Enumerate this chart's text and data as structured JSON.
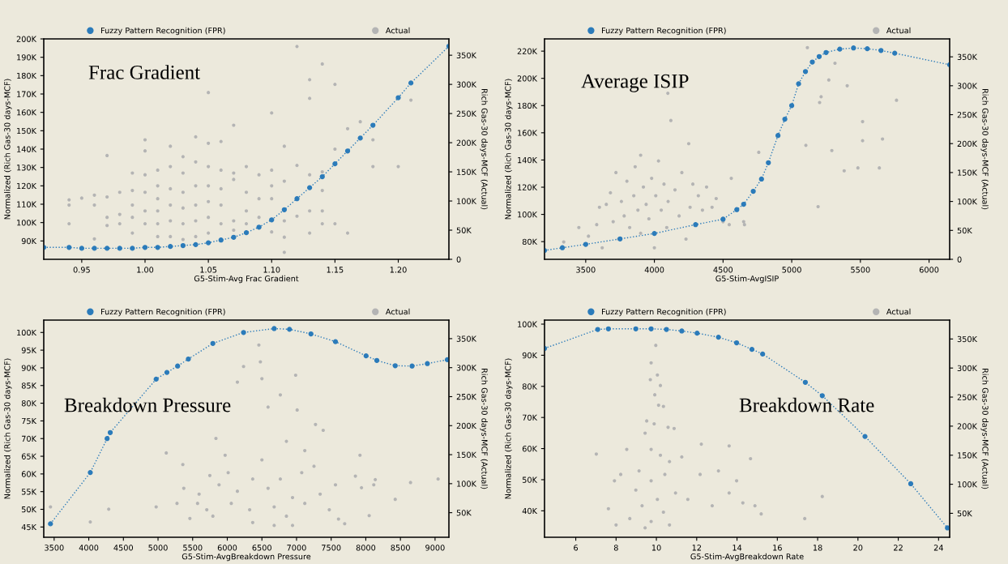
{
  "chart_data": [
    {
      "type": "scatter",
      "title": "Frac Gradient",
      "xlabel": "G5-Stim-Avg Frac Gradient",
      "ylabel": "Normalized (Rich Gas-30 days-MCF)",
      "y2label": "Rich Gas-30 days-MCF (Actual)",
      "legend": "top",
      "xlim": [
        0.92,
        1.24
      ],
      "xticks": [
        {
          "value": 0.95,
          "label": "0.95"
        },
        {
          "value": 1.0,
          "label": "1.00"
        },
        {
          "value": 1.05,
          "label": "1.05"
        },
        {
          "value": 1.1,
          "label": "1.10"
        },
        {
          "value": 1.15,
          "label": "1.15"
        },
        {
          "value": 1.2,
          "label": "1.20"
        }
      ],
      "ylim": [
        80000,
        200000
      ],
      "yticks": [
        {
          "value": 90000,
          "label": "90K"
        },
        {
          "value": 100000,
          "label": "100K"
        },
        {
          "value": 110000,
          "label": "110K"
        },
        {
          "value": 120000,
          "label": "120K"
        },
        {
          "value": 130000,
          "label": "130K"
        },
        {
          "value": 140000,
          "label": "140K"
        },
        {
          "value": 150000,
          "label": "150K"
        },
        {
          "value": 160000,
          "label": "160K"
        },
        {
          "value": 170000,
          "label": "170K"
        },
        {
          "value": 180000,
          "label": "180K"
        },
        {
          "value": 190000,
          "label": "190K"
        },
        {
          "value": 200000,
          "label": "200K"
        }
      ],
      "y2lim": [
        0,
        378000
      ],
      "y2ticks": [
        0,
        {
          "value": 50000,
          "label": "50K"
        },
        {
          "value": 100000,
          "label": "100K"
        },
        {
          "value": 150000,
          "label": "150K"
        },
        {
          "value": 200000,
          "label": "200K"
        },
        {
          "value": 250000,
          "label": "250K"
        },
        {
          "value": 300000,
          "label": "300K"
        },
        {
          "value": 350000,
          "label": "350K"
        }
      ],
      "series": [
        {
          "name": "Fuzzy Pattern Recognition (FPR)",
          "type": "line",
          "marker": "circle",
          "line_style": "dotted",
          "color": "#2b7bba",
          "x": [
            0.92,
            0.94,
            0.95,
            0.96,
            0.97,
            0.98,
            0.99,
            1.0,
            1.01,
            1.02,
            1.03,
            1.04,
            1.05,
            1.06,
            1.07,
            1.08,
            1.09,
            1.1,
            1.11,
            1.12,
            1.13,
            1.14,
            1.15,
            1.16,
            1.17,
            1.18,
            1.2,
            1.21,
            1.24
          ],
          "values": [
            86500,
            86500,
            86000,
            86000,
            86000,
            86000,
            86000,
            86500,
            86500,
            87000,
            87500,
            88000,
            89000,
            90500,
            92000,
            94500,
            97500,
            101500,
            107000,
            113000,
            119000,
            125000,
            132000,
            139000,
            146000,
            153000,
            168000,
            176000,
            196000
          ]
        },
        {
          "name": "Actual",
          "axis": "y2",
          "marker": "circle",
          "color": "#b4b4b4",
          "x": [
            0.94,
            0.94,
            0.94,
            0.95,
            0.96,
            0.96,
            0.96,
            0.97,
            0.97,
            0.97,
            0.97,
            0.98,
            0.98,
            0.98,
            0.99,
            0.99,
            0.99,
            0.99,
            0.99,
            1.0,
            1.0,
            1.0,
            1.0,
            1.0,
            1.0,
            1.01,
            1.01,
            1.01,
            1.01,
            1.01,
            1.01,
            1.02,
            1.02,
            1.02,
            1.02,
            1.02,
            1.02,
            1.03,
            1.03,
            1.03,
            1.03,
            1.03,
            1.03,
            1.04,
            1.04,
            1.04,
            1.04,
            1.04,
            1.04,
            1.05,
            1.05,
            1.05,
            1.05,
            1.05,
            1.05,
            1.05,
            1.06,
            1.06,
            1.06,
            1.06,
            1.06,
            1.07,
            1.07,
            1.07,
            1.07,
            1.07,
            1.08,
            1.08,
            1.08,
            1.08,
            1.09,
            1.09,
            1.09,
            1.1,
            1.1,
            1.1,
            1.1,
            1.1,
            1.11,
            1.11,
            1.11,
            1.11,
            1.11,
            1.12,
            1.12,
            1.12,
            1.13,
            1.13,
            1.13,
            1.13,
            1.13,
            1.14,
            1.14,
            1.14,
            1.14,
            1.14,
            1.15,
            1.15,
            1.15,
            1.16,
            1.16,
            1.17,
            1.18,
            1.18,
            1.2,
            1.21
          ],
          "values": [
            102000,
            93000,
            61000,
            105000,
            110000,
            93000,
            35000,
            178000,
            107000,
            72000,
            58000,
            115000,
            77000,
            61000,
            148000,
            118000,
            93000,
            72000,
            45000,
            205000,
            186000,
            145000,
            115000,
            83000,
            61000,
            153000,
            126000,
            104000,
            83000,
            61000,
            39000,
            194000,
            159000,
            121000,
            93000,
            66000,
            39000,
            176000,
            148000,
            115000,
            88000,
            61000,
            34000,
            210000,
            167000,
            126000,
            93000,
            66000,
            39000,
            286000,
            199000,
            159000,
            126000,
            99000,
            72000,
            45000,
            202000,
            153000,
            121000,
            93000,
            61000,
            230000,
            148000,
            137000,
            66000,
            50000,
            159000,
            115000,
            83000,
            61000,
            145000,
            104000,
            72000,
            251000,
            153000,
            126000,
            104000,
            47000,
            194000,
            134000,
            66000,
            38000,
            12000,
            365000,
            161000,
            74000,
            308000,
            276000,
            145000,
            83000,
            45000,
            335000,
            150000,
            118000,
            83000,
            61000,
            300000,
            189000,
            61000,
            224000,
            45000,
            236000,
            205000,
            159000,
            159000,
            273000
          ]
        }
      ]
    },
    {
      "type": "scatter",
      "title": "Average ISIP",
      "xlabel": "G5-Stim-AvgISIP",
      "ylabel": "Normalized (Rich Gas-30 days-MCF)",
      "y2label": "Rich Gas-30 days-MCF (Actual)",
      "legend": "top",
      "xlim": [
        3200,
        6150
      ],
      "xticks": [
        3500,
        4000,
        4500,
        5000,
        5500,
        6000
      ],
      "ylim": [
        67000,
        229000
      ],
      "yticks": [
        {
          "value": 80000,
          "label": "80K"
        },
        {
          "value": 100000,
          "label": "100K"
        },
        {
          "value": 120000,
          "label": "120K"
        },
        {
          "value": 140000,
          "label": "140K"
        },
        {
          "value": 160000,
          "label": "160K"
        },
        {
          "value": 180000,
          "label": "180K"
        },
        {
          "value": 200000,
          "label": "200K"
        },
        {
          "value": 220000,
          "label": "220K"
        }
      ],
      "y2lim": [
        0,
        381000
      ],
      "y2ticks": [
        0,
        {
          "value": 50000,
          "label": "50K"
        },
        {
          "value": 100000,
          "label": "100K"
        },
        {
          "value": 150000,
          "label": "150K"
        },
        {
          "value": 200000,
          "label": "200K"
        },
        {
          "value": 250000,
          "label": "250K"
        },
        {
          "value": 300000,
          "label": "300K"
        },
        {
          "value": 350000,
          "label": "350K"
        }
      ],
      "series": [
        {
          "name": "Fuzzy Pattern Recognition (FPR)",
          "type": "line",
          "marker": "circle",
          "line_style": "dotted",
          "color": "#2b7bba",
          "x": [
            3200,
            3330,
            3500,
            3750,
            4000,
            4300,
            4500,
            4600,
            4650,
            4720,
            4780,
            4830,
            4900,
            4950,
            5000,
            5050,
            5100,
            5150,
            5200,
            5250,
            5350,
            5450,
            5550,
            5650,
            5750,
            6150
          ],
          "values": [
            73500,
            75500,
            78000,
            82000,
            86000,
            92500,
            96500,
            103500,
            107500,
            117000,
            126000,
            138000,
            158000,
            170000,
            180000,
            196000,
            205000,
            212000,
            216000,
            219000,
            221500,
            222300,
            221800,
            220500,
            218500,
            210000
          ]
        },
        {
          "name": "Actual",
          "axis": "y2",
          "marker": "circle",
          "color": "#b4b4b4",
          "x": [
            3340,
            3450,
            3520,
            3580,
            3600,
            3620,
            3650,
            3680,
            3700,
            3720,
            3740,
            3760,
            3780,
            3800,
            3820,
            3850,
            3860,
            3880,
            3900,
            3900,
            3920,
            3940,
            3960,
            3980,
            4000,
            4010,
            4030,
            4050,
            4070,
            4090,
            4100,
            4120,
            4150,
            4180,
            4200,
            4230,
            4250,
            4260,
            4280,
            4320,
            4350,
            4380,
            4420,
            4450,
            4500,
            4545,
            4560,
            4650,
            4656,
            4760,
            5103,
            5292,
            5516,
            5516,
            5404,
            5270,
            5214,
            5203,
            5661,
            5638,
            5482,
            5382,
            5763,
            5192,
            5315,
            5114,
            4098
          ],
          "values": [
            30000,
            55000,
            40000,
            60000,
            90000,
            20000,
            95000,
            115000,
            65000,
            150000,
            35000,
            100000,
            75000,
            135000,
            55000,
            110000,
            160000,
            85000,
            180000,
            45000,
            125000,
            95000,
            70000,
            140000,
            20000,
            110000,
            170000,
            85000,
            130000,
            55000,
            100000,
            240000,
            120000,
            75000,
            150000,
            35000,
            200000,
            90000,
            130000,
            110000,
            85000,
            125000,
            90000,
            105000,
            65000,
            60000,
            140000,
            65000,
            60000,
            185000,
            197000,
            188000,
            205000,
            238000,
            300000,
            310000,
            281000,
            271000,
            208000,
            158000,
            158000,
            153000,
            275000,
            91000,
            339000,
            366000,
            287000
          ]
        }
      ]
    },
    {
      "type": "scatter",
      "title": "Breakdown Pressure",
      "xlabel": "G5-Stim-AvgBreakdown Pressure",
      "ylabel": "Normalized (Rich Gas-30 days-MCF)",
      "y2label": "Rich Gas-30 days-MCF (Actual)",
      "legend": "top",
      "xlim": [
        3350,
        9200
      ],
      "xticks": [
        3500,
        4000,
        4500,
        5000,
        5500,
        6000,
        6500,
        7000,
        7500,
        8000,
        8500,
        9000
      ],
      "ylim": [
        42100,
        103500
      ],
      "yticks": [
        {
          "value": 45000,
          "label": "45K"
        },
        {
          "value": 50000,
          "label": "50K"
        },
        {
          "value": 55000,
          "label": "55K"
        },
        {
          "value": 60000,
          "label": "60K"
        },
        {
          "value": 65000,
          "label": "65K"
        },
        {
          "value": 70000,
          "label": "70K"
        },
        {
          "value": 75000,
          "label": "75K"
        },
        {
          "value": 80000,
          "label": "80K"
        },
        {
          "value": 85000,
          "label": "85K"
        },
        {
          "value": 90000,
          "label": "90K"
        },
        {
          "value": 95000,
          "label": "95K"
        },
        {
          "value": 100000,
          "label": "100K"
        }
      ],
      "y2lim": [
        7600,
        382000
      ],
      "y2ticks": [
        {
          "value": 50000,
          "label": "50K"
        },
        {
          "value": 100000,
          "label": "100K"
        },
        {
          "value": 150000,
          "label": "150K"
        },
        {
          "value": 200000,
          "label": "200K"
        },
        {
          "value": 250000,
          "label": "250K"
        },
        {
          "value": 300000,
          "label": "300K"
        },
        {
          "value": 350000,
          "label": "350K"
        }
      ],
      "series": [
        {
          "name": "Fuzzy Pattern Recognition (FPR)",
          "type": "line",
          "marker": "circle",
          "line_style": "dotted",
          "color": "#2b7bba",
          "x": [
            3447,
            4022,
            4265,
            4310,
            4973,
            5128,
            5283,
            5438,
            5792,
            6235,
            6677,
            6898,
            7208,
            7562,
            8004,
            8159,
            8425,
            8668,
            8889,
            9177
          ],
          "values": [
            45900,
            60400,
            70000,
            71700,
            86800,
            88700,
            90500,
            92500,
            96900,
            100000,
            101100,
            100900,
            99600,
            97400,
            93400,
            92100,
            90600,
            90500,
            91200,
            92300
          ]
        },
        {
          "name": "Actual",
          "axis": "y2",
          "marker": "circle",
          "color": "#b4b4b4",
          "x": [
            3447,
            4022,
            4288,
            4973,
            5119,
            5274,
            5358,
            5372,
            5460,
            5593,
            5748,
            5836,
            5969,
            6146,
            6235,
            6456,
            6478,
            6500,
            6589,
            6766,
            6987,
            7009,
            7274,
            7385,
            7916,
            8137,
            8425,
            8646,
            9044,
            8049,
            7695,
            5571,
            5792,
            6013,
            6146,
            6323,
            6500,
            6589,
            6677,
            6766,
            6854,
            6942,
            7075,
            7119,
            7252,
            7341,
            7473,
            7562,
            6367,
            6058,
            5881,
            5704,
            6677,
            6942,
            6367,
            7606,
            7119,
            6854,
            7850,
            7938,
            8115
          ],
          "values": [
            60000,
            34000,
            56000,
            60000,
            153000,
            66000,
            133000,
            92000,
            40000,
            82000,
            114000,
            178000,
            149000,
            275000,
            302000,
            339000,
            310000,
            281000,
            232000,
            253000,
            287000,
            227000,
            202000,
            192000,
            149000,
            107000,
            73000,
            102000,
            108000,
            45000,
            31000,
            66000,
            44000,
            119000,
            87000,
            55000,
            141000,
            92000,
            60000,
            108000,
            44000,
            76000,
            119000,
            66000,
            130000,
            82000,
            55000,
            98000,
            108000,
            66000,
            98000,
            55000,
            28000,
            28000,
            33000,
            39000,
            157000,
            173000,
            113000,
            93000,
            98000
          ]
        }
      ]
    },
    {
      "type": "scatter",
      "title": "Breakdown Rate",
      "xlabel": "G5-Stim-AvgBreakdown Rate",
      "ylabel": "Normalized (Rich Gas-30 days-MCF)",
      "y2label": "Rich Gas-30 days-MCF (Actual)",
      "legend": "top",
      "xlim": [
        4.45,
        24.55
      ],
      "xticks": [
        6,
        8,
        10,
        12,
        14,
        16,
        18,
        20,
        22,
        24
      ],
      "ylim": [
        31500,
        101300
      ],
      "yticks": [
        {
          "value": 40000,
          "label": "40K"
        },
        {
          "value": 50000,
          "label": "50K"
        },
        {
          "value": 60000,
          "label": "60K"
        },
        {
          "value": 70000,
          "label": "70K"
        },
        {
          "value": 80000,
          "label": "80K"
        },
        {
          "value": 90000,
          "label": "90K"
        },
        {
          "value": 100000,
          "label": "100K"
        }
      ],
      "y2lim": [
        8800,
        382500
      ],
      "y2ticks": [
        {
          "value": 50000,
          "label": "50K"
        },
        {
          "value": 100000,
          "label": "100K"
        },
        {
          "value": 150000,
          "label": "150K"
        },
        {
          "value": 200000,
          "label": "200K"
        },
        {
          "value": 250000,
          "label": "250K"
        },
        {
          "value": 300000,
          "label": "300K"
        },
        {
          "value": 350000,
          "label": "350K"
        }
      ],
      "series": [
        {
          "name": "Fuzzy Pattern Recognition (FPR)",
          "type": "line",
          "marker": "circle",
          "line_style": "dotted",
          "color": "#2b7bba",
          "x": [
            4.45,
            7.09,
            7.62,
            8.98,
            9.74,
            10.5,
            11.26,
            12.02,
            13.08,
            13.98,
            14.74,
            15.27,
            17.39,
            18.23,
            20.35,
            22.62,
            24.44
          ],
          "values": [
            92200,
            98300,
            98500,
            98500,
            98500,
            98300,
            97800,
            97100,
            95800,
            94000,
            91900,
            90400,
            81300,
            77000,
            63900,
            48700,
            34500
          ]
        },
        {
          "name": "Actual",
          "axis": "y2",
          "marker": "circle",
          "color": "#b4b4b4",
          "x": [
            9.97,
            9.74,
            9.7,
            10.05,
            10.2,
            9.92,
            10.11,
            10.35,
            9.52,
            9.89,
            10.58,
            10.88,
            9.44,
            9.74,
            10.2,
            10.65,
            11.26,
            8.53,
            7.02,
            7.92,
            8.23,
            8.98,
            9.29,
            9.74,
            10.05,
            10.35,
            9.74,
            10.65,
            10.95,
            11.56,
            12.17,
            12.77,
            13.08,
            13.61,
            13.98,
            14.29,
            14.89,
            15.2,
            13.61,
            14.67,
            12.23,
            7.62,
            8.0,
            8.68,
            9.44,
            18.23,
            17.36,
            9.14,
            10.42
          ],
          "values": [
            339000,
            309000,
            280000,
            288000,
            270000,
            254000,
            236000,
            234000,
            209000,
            204000,
            198000,
            196000,
            188000,
            160000,
            150000,
            139000,
            147000,
            160000,
            152000,
            106000,
            117000,
            90000,
            63000,
            106000,
            74000,
            52000,
            36000,
            30000,
            85000,
            74000,
            117000,
            63000,
            123000,
            85000,
            106000,
            68000,
            63000,
            49000,
            166000,
            144000,
            169000,
            58000,
            30000,
            41000,
            25000,
            79000,
            41000,
            123000,
            117000
          ]
        }
      ]
    }
  ]
}
